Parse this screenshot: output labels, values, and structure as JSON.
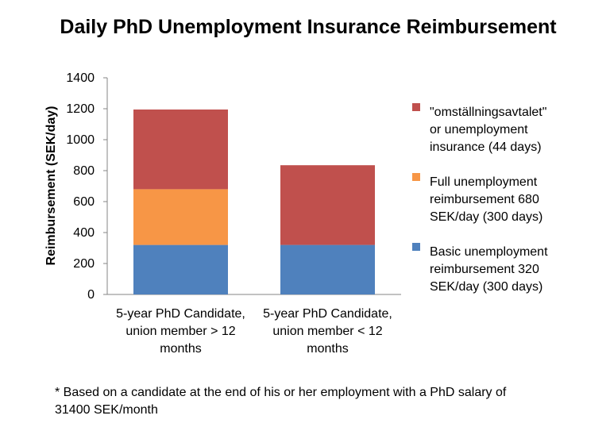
{
  "chart_data": {
    "type": "bar",
    "stacked": true,
    "title": "Daily PhD Unemployment Insurance Reimbursement",
    "ylabel": "Reimbursement  (SEK/day)",
    "xlabel": "",
    "ylim": [
      0,
      1400
    ],
    "yticks": [
      0,
      200,
      400,
      600,
      800,
      1000,
      1200,
      1400
    ],
    "grid": false,
    "legend_position": "right",
    "categories": [
      [
        "5-year PhD Candidate,",
        "union member > 12",
        "months"
      ],
      [
        "5-year PhD Candidate,",
        "union member < 12",
        "months"
      ]
    ],
    "series": [
      {
        "name": [
          "Basic unemployment",
          "reimbursement 320",
          "SEK/day (300 days)"
        ],
        "values": [
          320,
          320
        ],
        "color": "#4f81bd"
      },
      {
        "name": [
          "Full unemployment",
          "reimbursement 680",
          "SEK/day (300 days)"
        ],
        "values": [
          360,
          0
        ],
        "color": "#f79646"
      },
      {
        "name": [
          "\"omställningsavtalet\"",
          "or unemployment",
          "insurance (44 days)"
        ],
        "values": [
          515,
          515
        ],
        "color": "#c0504d"
      }
    ],
    "footnote": [
      "* Based on a candidate at the end of his or her employment with a PhD salary of",
      "31400 SEK/month"
    ]
  }
}
